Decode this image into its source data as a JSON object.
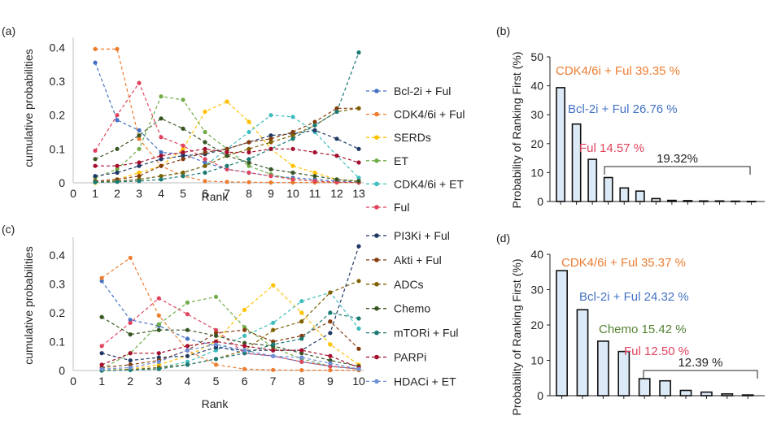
{
  "chart_data": [
    {
      "id": "a",
      "type": "line",
      "panel_label": "(a)",
      "xlabel": "Rank",
      "ylabel": "cumulative probabilities",
      "x_ticks": [
        0,
        1,
        2,
        3,
        4,
        5,
        6,
        7,
        8,
        9,
        10,
        11,
        12,
        13
      ],
      "y_ticks": [
        "0",
        "0.1",
        "0.2",
        "0.3",
        "0.4"
      ],
      "ylim": [
        0,
        0.42
      ],
      "series": [
        {
          "name": "Bcl-2i + Ful",
          "color": "#4472c4",
          "values": [
            0.355,
            0.185,
            0.155,
            0.09,
            0.085,
            0.06,
            0.04,
            0.03,
            0.02,
            0.015,
            0.01,
            0.005,
            0.003
          ]
        },
        {
          "name": "CDK4/6i + Ful",
          "color": "#ed7d31",
          "values": [
            0.395,
            0.395,
            0.13,
            0.05,
            0.02,
            0.005,
            0.003,
            0.002,
            0.001,
            0.001,
            0.001,
            0.001,
            0.001
          ]
        },
        {
          "name": "SERDs",
          "color": "#ffc000",
          "values": [
            0.0,
            0.01,
            0.03,
            0.05,
            0.1,
            0.21,
            0.24,
            0.18,
            0.1,
            0.05,
            0.03,
            0.01,
            0.005
          ]
        },
        {
          "name": "ET",
          "color": "#70ad47",
          "values": [
            0.015,
            0.04,
            0.1,
            0.255,
            0.245,
            0.15,
            0.1,
            0.05,
            0.025,
            0.01,
            0.005,
            0.002,
            0.001
          ]
        },
        {
          "name": "CDK4/6i + ET",
          "color": "#3dbdbd",
          "values": [
            0.002,
            0.005,
            0.01,
            0.02,
            0.03,
            0.05,
            0.1,
            0.15,
            0.2,
            0.195,
            0.15,
            0.08,
            0.015
          ]
        },
        {
          "name": "Ful",
          "color": "#e0435e",
          "values": [
            0.095,
            0.2,
            0.295,
            0.135,
            0.11,
            0.07,
            0.04,
            0.03,
            0.02,
            0.01,
            0.005,
            0.002,
            0.001
          ]
        },
        {
          "name": "PI3Ki + Ful",
          "color": "#1f3864",
          "values": [
            0.02,
            0.03,
            0.05,
            0.07,
            0.08,
            0.085,
            0.1,
            0.12,
            0.14,
            0.145,
            0.155,
            0.13,
            0.1
          ]
        },
        {
          "name": "Akti + Ful",
          "color": "#843c0c",
          "values": [
            0.005,
            0.01,
            0.02,
            0.05,
            0.07,
            0.09,
            0.1,
            0.12,
            0.13,
            0.15,
            0.18,
            0.22,
            0.22
          ]
        },
        {
          "name": "ADCs",
          "color": "#7f6000",
          "values": [
            0.003,
            0.005,
            0.01,
            0.02,
            0.03,
            0.05,
            0.08,
            0.1,
            0.12,
            0.14,
            0.17,
            0.21,
            0.22
          ]
        },
        {
          "name": "Chemo",
          "color": "#375623",
          "values": [
            0.07,
            0.1,
            0.14,
            0.19,
            0.16,
            0.12,
            0.08,
            0.06,
            0.04,
            0.03,
            0.02,
            0.01,
            0.005
          ]
        },
        {
          "name": "mTORi + Ful",
          "color": "#1a7a74",
          "values": [
            0.002,
            0.003,
            0.005,
            0.01,
            0.02,
            0.03,
            0.05,
            0.07,
            0.1,
            0.13,
            0.17,
            0.21,
            0.385
          ]
        },
        {
          "name": "PARPi",
          "color": "#a50f2d",
          "values": [
            0.05,
            0.05,
            0.06,
            0.08,
            0.09,
            0.1,
            0.09,
            0.09,
            0.1,
            0.1,
            0.09,
            0.08,
            0.06
          ]
        }
      ]
    },
    {
      "id": "b",
      "type": "bar",
      "panel_label": "(b)",
      "ylabel": "Probability of Ranking First (%)",
      "y_ticks": [
        "0",
        "10",
        "20",
        "30",
        "40",
        "50"
      ],
      "ylim": [
        0,
        50
      ],
      "values": [
        39.35,
        26.76,
        14.57,
        8.3,
        4.7,
        3.6,
        1.0,
        0.4,
        0.3,
        0.2,
        0.2,
        0.1,
        0.05
      ],
      "annotations": [
        {
          "text": "CDK4/6i + Ful  39.35 %",
          "color": "#ed7d31"
        },
        {
          "text": "Bcl-2i + Ful 26.76 %",
          "color": "#4472c4"
        },
        {
          "text": "Ful 14.57 %",
          "color": "#e0435e"
        }
      ],
      "bracket_label": "19.32%"
    },
    {
      "id": "c",
      "type": "line",
      "panel_label": "(c)",
      "xlabel": "Rank",
      "ylabel": "cumulative probabilities",
      "x_ticks": [
        0,
        1,
        2,
        3,
        4,
        5,
        6,
        7,
        8,
        9,
        10
      ],
      "y_ticks": [
        "0",
        "0.1",
        "0.2",
        "0.3",
        "0.4"
      ],
      "ylim": [
        0,
        0.45
      ],
      "series": [
        {
          "name": "Bcl-2i + Ful",
          "color": "#4472c4",
          "values": [
            0.31,
            0.175,
            0.155,
            0.11,
            0.085,
            0.06,
            0.05,
            0.03,
            0.015,
            0.005
          ]
        },
        {
          "name": "CDK4/6i + Ful",
          "color": "#ed7d31",
          "values": [
            0.32,
            0.39,
            0.19,
            0.07,
            0.02,
            0.005,
            0.002,
            0.001,
            0.001,
            0.001
          ]
        },
        {
          "name": "SERDs",
          "color": "#ffc000",
          "values": [
            0.0,
            0.005,
            0.02,
            0.05,
            0.1,
            0.21,
            0.295,
            0.2,
            0.09,
            0.02
          ]
        },
        {
          "name": "ET",
          "color": "#70ad47",
          "values": [
            0.005,
            0.06,
            0.16,
            0.235,
            0.255,
            0.15,
            0.08,
            0.04,
            0.015,
            0.005
          ]
        },
        {
          "name": "CDK4/6i + ET",
          "color": "#3dbdbd",
          "values": [
            0.0,
            0.002,
            0.01,
            0.03,
            0.07,
            0.12,
            0.165,
            0.24,
            0.27,
            0.145
          ]
        },
        {
          "name": "Ful",
          "color": "#e0435e",
          "values": [
            0.085,
            0.165,
            0.25,
            0.195,
            0.14,
            0.06,
            0.05,
            0.03,
            0.015,
            0.005
          ]
        },
        {
          "name": "PI3Ki + Ful",
          "color": "#1f3864",
          "values": [
            0.06,
            0.035,
            0.045,
            0.05,
            0.08,
            0.07,
            0.07,
            0.07,
            0.13,
            0.43
          ]
        },
        {
          "name": "Akti + Ful",
          "color": "#843c0c",
          "values": [
            0.01,
            0.02,
            0.035,
            0.07,
            0.13,
            0.14,
            0.1,
            0.12,
            0.17,
            0.075
          ]
        },
        {
          "name": "ADCs",
          "color": "#7f6000",
          "values": [
            0.0,
            0.003,
            0.01,
            0.02,
            0.04,
            0.07,
            0.14,
            0.17,
            0.27,
            0.31
          ]
        },
        {
          "name": "Chemo",
          "color": "#375623",
          "values": [
            0.185,
            0.125,
            0.14,
            0.14,
            0.12,
            0.095,
            0.085,
            0.06,
            0.035,
            0.015
          ]
        },
        {
          "name": "mTORi + Ful",
          "color": "#1a7a74",
          "values": [
            0.0,
            0.002,
            0.005,
            0.02,
            0.04,
            0.06,
            0.09,
            0.11,
            0.2,
            0.18
          ]
        },
        {
          "name": "PARPi",
          "color": "#a50f2d",
          "values": [
            0.02,
            0.06,
            0.06,
            0.085,
            0.1,
            0.085,
            0.07,
            0.07,
            0.05,
            0.01
          ]
        },
        {
          "name": "HDACi + ET",
          "color": "#6f8fd6",
          "values": [
            0.005,
            0.01,
            0.03,
            0.07,
            0.09,
            0.07,
            0.05,
            0.045,
            0.025,
            0.005
          ]
        }
      ]
    },
    {
      "id": "d",
      "type": "bar",
      "panel_label": "(d)",
      "ylabel": "Probability of Ranking First (%)",
      "y_ticks": [
        "0",
        "10",
        "20",
        "30",
        "40"
      ],
      "ylim": [
        0,
        40
      ],
      "values": [
        35.37,
        24.32,
        15.42,
        12.5,
        4.8,
        4.2,
        1.5,
        1.0,
        0.5,
        0.2
      ],
      "annotations": [
        {
          "text": "CDK4/6i + Ful 35.37 %",
          "color": "#ed7d31"
        },
        {
          "text": "Bcl-2i + Ful 24.32 %",
          "color": "#4472c4"
        },
        {
          "text": "Chemo 15.42 %",
          "color": "#548235"
        },
        {
          "text": "Ful 12.50 %",
          "color": "#e0435e"
        }
      ],
      "bracket_label": "12.39 %"
    }
  ],
  "legend_a": [
    "Bcl-2i + Ful",
    "CDK4/6i + Ful",
    "SERDs",
    "ET",
    "CDK4/6i + ET",
    "Ful"
  ],
  "legend_c": [
    "PI3Ki + Ful",
    "Akti + Ful",
    "ADCs",
    "Chemo",
    "mTORi + Ful",
    "PARPi",
    "HDACi + ET"
  ],
  "legend_colors": {
    "Bcl-2i + Ful": "#4472c4",
    "CDK4/6i + Ful": "#ed7d31",
    "SERDs": "#ffc000",
    "ET": "#70ad47",
    "CDK4/6i + ET": "#3dbdbd",
    "Ful": "#e0435e",
    "PI3Ki + Ful": "#1f3864",
    "Akti + Ful": "#843c0c",
    "ADCs": "#7f6000",
    "Chemo": "#375623",
    "mTORi + Ful": "#1a7a74",
    "PARPi": "#a50f2d",
    "HDACi + ET": "#6f8fd6"
  },
  "bar_fill": "#dce9f6"
}
